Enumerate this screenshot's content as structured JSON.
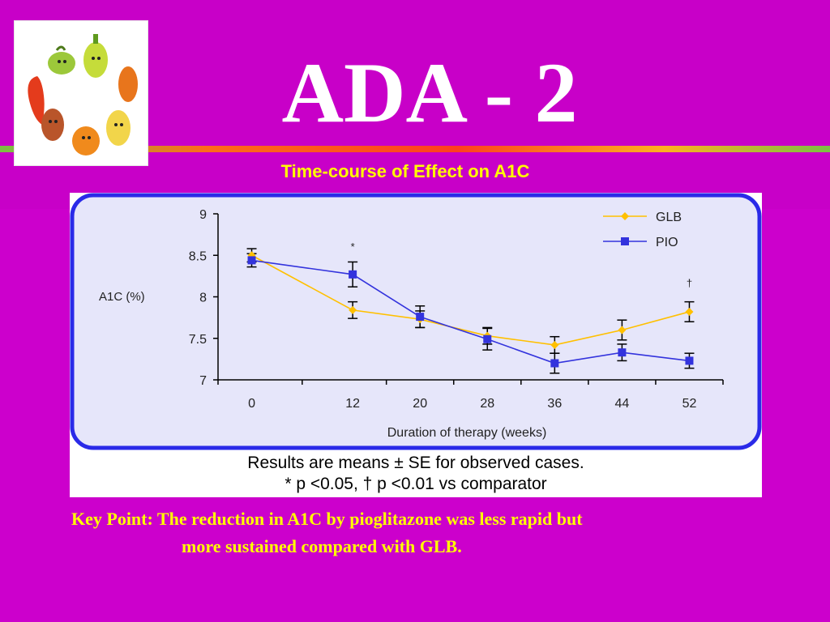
{
  "slide": {
    "title": "ADA - 2",
    "subtitle": "Time-course of Effect on A1C",
    "footnote_line1": "Results are means ± SE for observed cases.",
    "footnote_line2": "* p <0.05, † p <0.01 vs comparator",
    "key_point_line1": "Key Point: The reduction in A1C by pioglitazone was less rapid but",
    "key_point_line2": "more sustained compared with GLB.",
    "logo_icon": "cartoon-vegetables-logo",
    "colors": {
      "background": "#cc00cc",
      "title": "#ffffff",
      "accent_text": "#ffff00",
      "plot_area": "#e6e6fa",
      "plot_border": "#2a2ae8"
    }
  },
  "chart_data": {
    "type": "line",
    "title": "",
    "xlabel": "Duration of therapy (weeks)",
    "ylabel": "A1C (%)",
    "x": [
      0,
      12,
      20,
      28,
      36,
      44,
      52
    ],
    "x_tick_labels": [
      "0",
      "12",
      "20",
      "28",
      "36",
      "44",
      "52"
    ],
    "xlim": [
      -4,
      56
    ],
    "ylim": [
      7,
      9
    ],
    "y_ticks": [
      7,
      7.5,
      8,
      8.5,
      9
    ],
    "y_tick_labels": [
      "7",
      "7.5",
      "8",
      "8.5",
      "9"
    ],
    "grid": false,
    "legend_position": "top-right",
    "series": [
      {
        "name": "GLB",
        "color": "#ffc000",
        "marker": "diamond",
        "values": [
          8.5,
          7.84,
          7.73,
          7.53,
          7.42,
          7.6,
          7.82
        ],
        "errors": [
          0.08,
          0.1,
          0.1,
          0.1,
          0.1,
          0.12,
          0.12
        ]
      },
      {
        "name": "PIO",
        "color": "#3333dd",
        "marker": "square",
        "values": [
          8.44,
          8.27,
          7.76,
          7.49,
          7.2,
          7.33,
          7.23
        ],
        "errors": [
          0.08,
          0.15,
          0.13,
          0.13,
          0.12,
          0.1,
          0.09
        ]
      }
    ],
    "annotations": [
      {
        "x": 12,
        "y": 8.56,
        "text": "*"
      },
      {
        "x": 52,
        "y": 8.12,
        "text": "†"
      }
    ]
  }
}
